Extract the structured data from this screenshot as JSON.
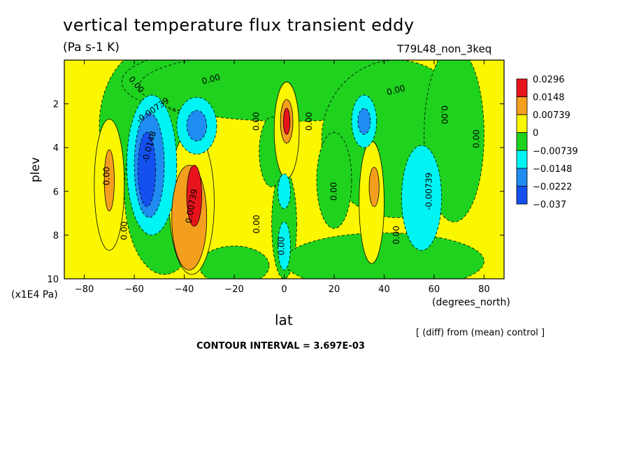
{
  "chart_data": {
    "type": "contour",
    "title": "vertical temperature flux transient eddy",
    "subtitle": "(Pa s-1 K)",
    "run_label": "T79L48_non_3keq",
    "xlabel": "lat",
    "x_units": "(degrees_north)",
    "ylabel": "plev",
    "y_units": "(x1E4 Pa)",
    "note": "[ (diff) from (mean) control ]",
    "contour_interval": "CONTOUR INTERVAL = 3.697E-03",
    "xlim": [
      -88,
      88
    ],
    "ylim": [
      10,
      0
    ],
    "x_ticks": [
      -80,
      -60,
      -40,
      -20,
      0,
      20,
      40,
      60,
      80
    ],
    "y_ticks": [
      2,
      4,
      6,
      8,
      10
    ],
    "colorbar": {
      "labels": [
        "0.0296",
        "0.0148",
        "0.00739",
        "0",
        "-0.00739",
        "-0.0148",
        "-0.0222",
        "-0.037"
      ],
      "colors": [
        "#e8141c",
        "#f49e1e",
        "#fbf700",
        "#1ed21e",
        "#00f4f4",
        "#1e8cf0",
        "#1450f0",
        "#1450f0"
      ]
    },
    "features": [
      {
        "lat": -55,
        "plev": 4.8,
        "value": -0.037,
        "sign": "negative"
      },
      {
        "lat": -36,
        "plev": 3.0,
        "value": -0.0148,
        "sign": "negative"
      },
      {
        "lat": -36,
        "plev": 6.2,
        "value": 0.0296,
        "sign": "positive"
      },
      {
        "lat": -40,
        "plev": 8.0,
        "value": 0.0148,
        "sign": "positive"
      },
      {
        "lat": -70,
        "plev": 5.5,
        "value": 0.0148,
        "sign": "positive"
      },
      {
        "lat": 1,
        "plev": 2.8,
        "value": 0.0296,
        "sign": "positive"
      },
      {
        "lat": 0,
        "plev": 6.0,
        "value": -0.00739,
        "sign": "negative"
      },
      {
        "lat": 0,
        "plev": 8.5,
        "value": -0.00739,
        "sign": "negative"
      },
      {
        "lat": 32,
        "plev": 2.8,
        "value": -0.0148,
        "sign": "negative"
      },
      {
        "lat": 35,
        "plev": 6.5,
        "value": 0.00739,
        "sign": "positive"
      },
      {
        "lat": 55,
        "plev": 6.3,
        "value": -0.0148,
        "sign": "negative"
      }
    ],
    "contour_labels": [
      "0.00",
      "-0.00739",
      "-0.0148",
      "0.00",
      "0.00739",
      "0.00",
      "0.00",
      "0.00",
      "0.00",
      "0.00",
      "0.00",
      "0.00",
      "-0.00739",
      "0.00",
      "0.00",
      "0.00",
      "0.00"
    ]
  }
}
